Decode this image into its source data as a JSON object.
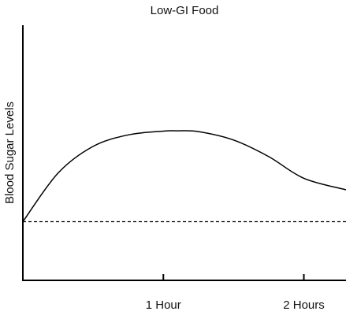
{
  "chart_data": {
    "type": "line",
    "title": "Low-GI Food",
    "xlabel": "",
    "ylabel": "Blood Sugar Levels",
    "x_ticks": [
      {
        "value": 1,
        "label": "1 Hour"
      },
      {
        "value": 2,
        "label": "2 Hours"
      }
    ],
    "xlim": [
      0,
      2.3
    ],
    "ylim": [
      0,
      100
    ],
    "baseline": 23,
    "series": [
      {
        "x": [
          0,
          0.25,
          0.5,
          0.75,
          1.0,
          1.1,
          1.25,
          1.5,
          1.75,
          2.0,
          2.3
        ],
        "y": [
          23,
          42,
          52.5,
          57,
          58.5,
          58.6,
          58.3,
          55,
          48.5,
          40,
          35.5
        ]
      }
    ],
    "grid": false,
    "legend": "none",
    "colors": {
      "line": "#000000",
      "axis": "#000000",
      "baseline": "#000000"
    }
  }
}
